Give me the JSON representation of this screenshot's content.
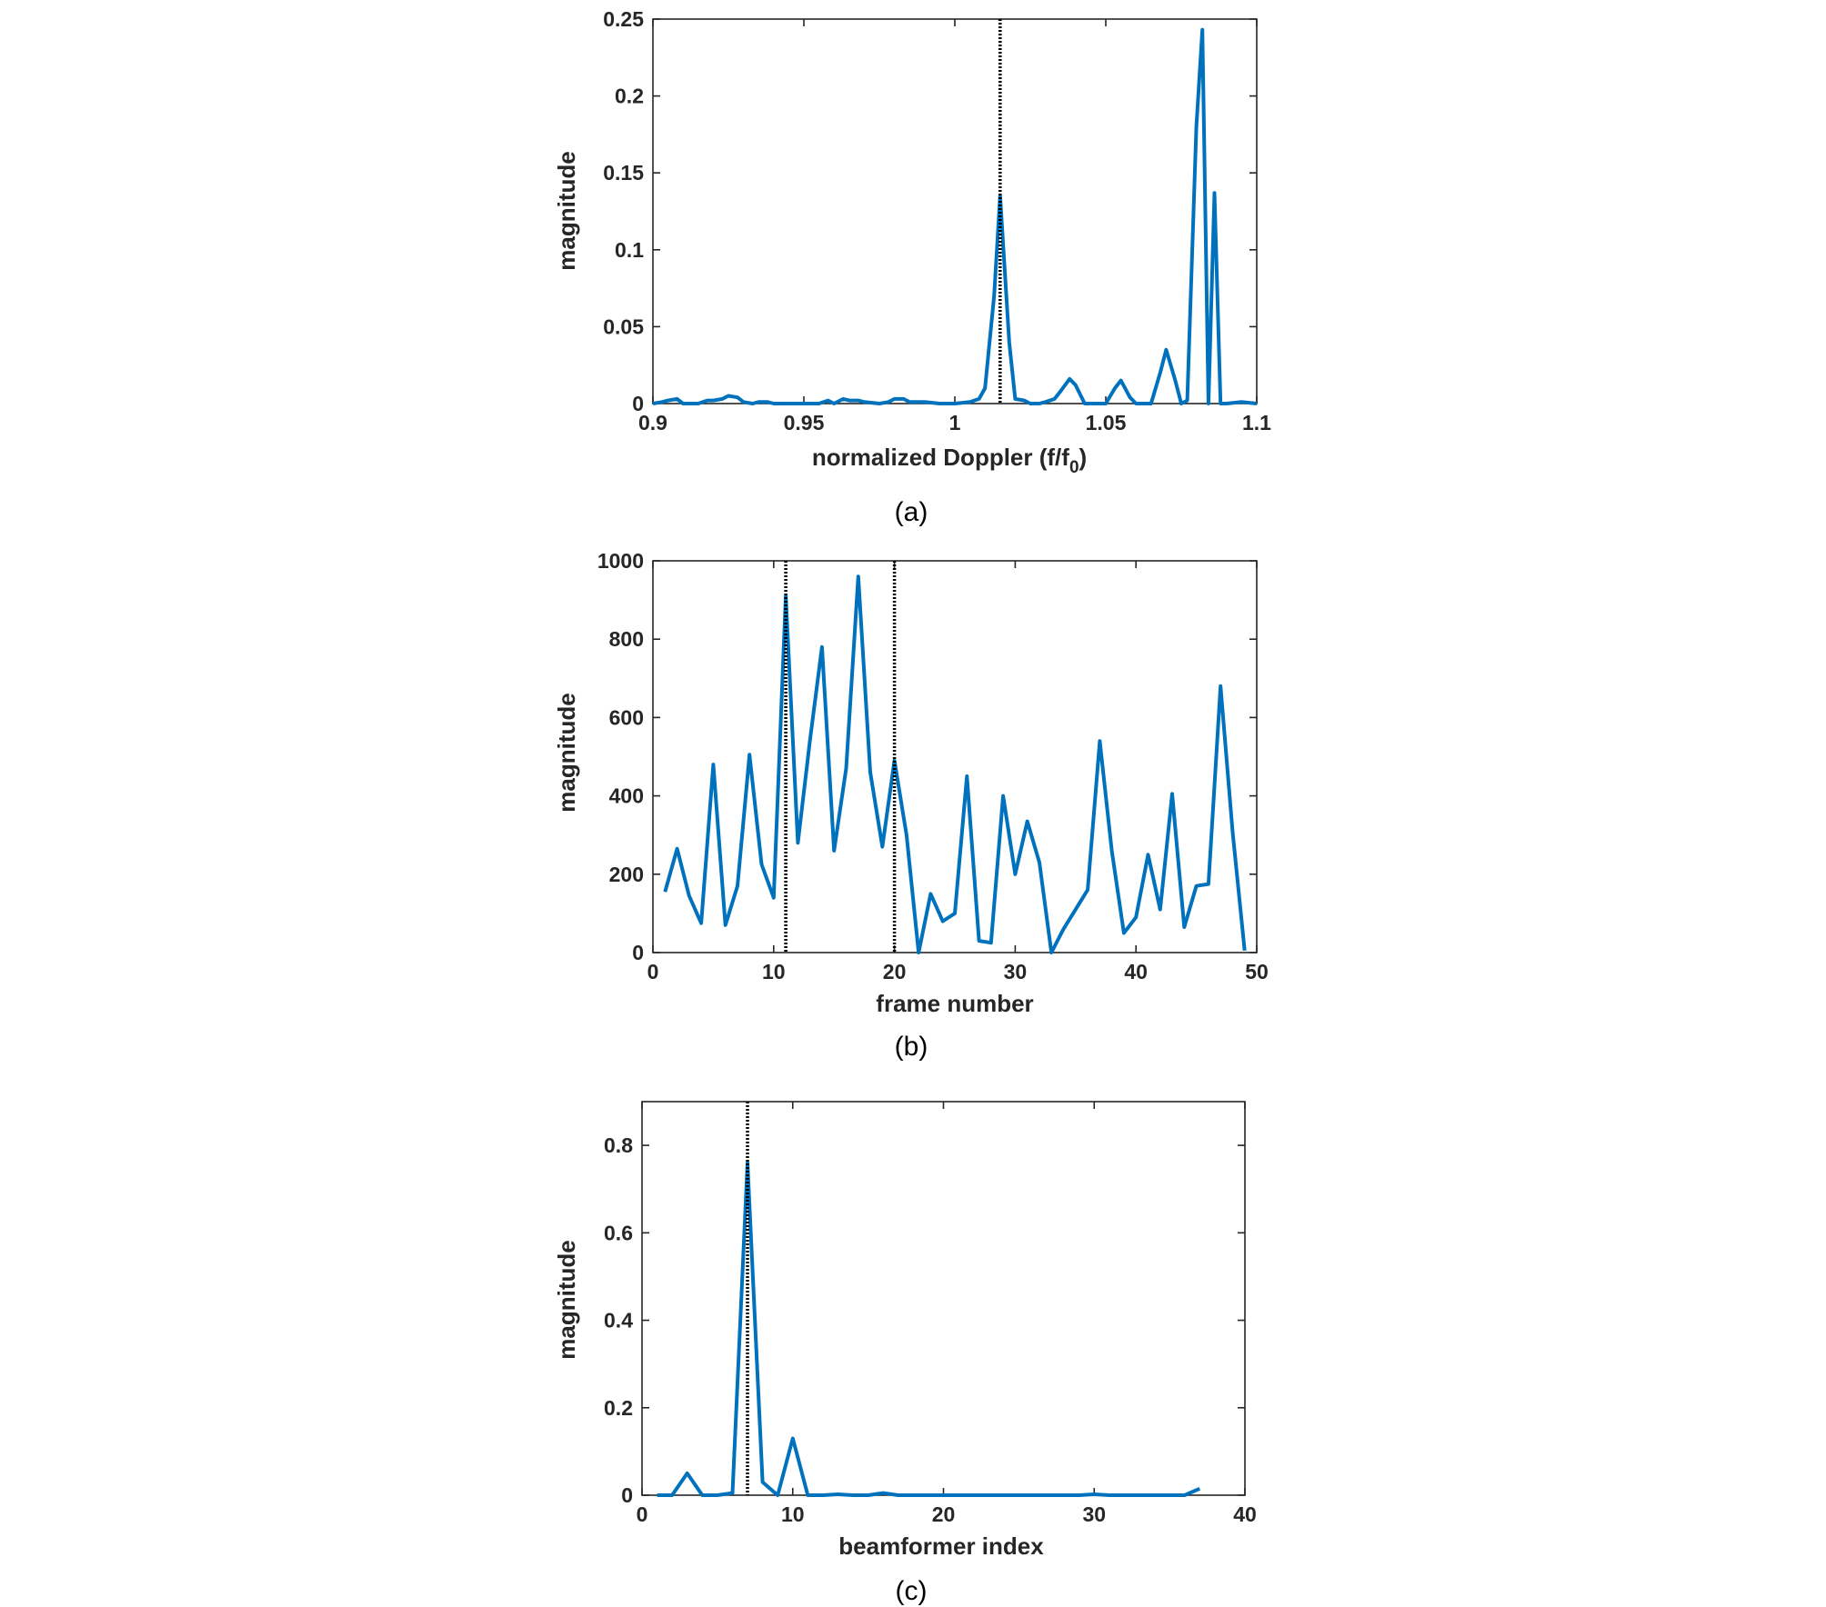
{
  "colors": {
    "series": "#0072BD",
    "marker": "#000000",
    "axes": "#262626"
  },
  "chart_data": [
    {
      "type": "line",
      "caption": "(a)",
      "xlabel": "normalized Doppler (f/f",
      "xlabel_sub": "0",
      "xlabel_end": ")",
      "ylabel": "magnitude",
      "xlim": [
        0.9,
        1.1
      ],
      "ylim": [
        0,
        0.25
      ],
      "xticks": [
        0.9,
        0.95,
        1,
        1.05,
        1.1
      ],
      "xtick_labels": [
        "0.9",
        "0.95",
        "1",
        "1.05",
        "1.1"
      ],
      "yticks": [
        0,
        0.05,
        0.1,
        0.15,
        0.2,
        0.25
      ],
      "ytick_labels": [
        "0",
        "0.05",
        "0.1",
        "0.15",
        "0.2",
        "0.25"
      ],
      "markers": [
        1.015
      ],
      "x": [
        0.9,
        0.903,
        0.905,
        0.908,
        0.91,
        0.913,
        0.915,
        0.918,
        0.92,
        0.923,
        0.925,
        0.928,
        0.93,
        0.933,
        0.935,
        0.938,
        0.94,
        0.945,
        0.95,
        0.955,
        0.958,
        0.96,
        0.963,
        0.965,
        0.968,
        0.97,
        0.975,
        0.978,
        0.98,
        0.983,
        0.985,
        0.988,
        0.99,
        0.995,
        1.0,
        1.005,
        1.008,
        1.01,
        1.013,
        1.015,
        1.018,
        1.02,
        1.023,
        1.025,
        1.028,
        1.03,
        1.033,
        1.035,
        1.038,
        1.04,
        1.043,
        1.045,
        1.048,
        1.05,
        1.053,
        1.055,
        1.058,
        1.06,
        1.063,
        1.065,
        1.068,
        1.07,
        1.073,
        1.075,
        1.077,
        1.08,
        1.082,
        1.084,
        1.086,
        1.088,
        1.09,
        1.095,
        1.1
      ],
      "y": [
        0.0,
        0.001,
        0.002,
        0.003,
        0.0,
        0.0,
        0.0,
        0.002,
        0.002,
        0.003,
        0.005,
        0.004,
        0.001,
        0.0,
        0.001,
        0.001,
        0.0,
        0.0,
        0.0,
        0.0,
        0.002,
        0.0,
        0.003,
        0.002,
        0.002,
        0.001,
        0.0,
        0.001,
        0.003,
        0.003,
        0.001,
        0.001,
        0.001,
        0.0,
        0.0,
        0.001,
        0.003,
        0.01,
        0.07,
        0.135,
        0.04,
        0.003,
        0.002,
        0.0,
        0.0,
        0.001,
        0.003,
        0.008,
        0.016,
        0.012,
        0.0,
        0.0,
        0.0,
        0.0,
        0.01,
        0.015,
        0.004,
        0.0,
        0.0,
        0.0,
        0.02,
        0.035,
        0.015,
        0.0,
        0.002,
        0.18,
        0.243,
        0.0,
        0.137,
        0.0,
        0.0,
        0.001,
        0.0
      ]
    },
    {
      "type": "line",
      "caption": "(b)",
      "xlabel": "frame number",
      "ylabel": "magnitude",
      "xlim": [
        0,
        50
      ],
      "ylim": [
        0,
        1000
      ],
      "xticks": [
        0,
        10,
        20,
        30,
        40,
        50
      ],
      "xtick_labels": [
        "0",
        "10",
        "20",
        "30",
        "40",
        "50"
      ],
      "yticks": [
        0,
        200,
        400,
        600,
        800,
        1000
      ],
      "ytick_labels": [
        "0",
        "200",
        "400",
        "600",
        "800",
        "1000"
      ],
      "markers": [
        11,
        20
      ],
      "x": [
        1,
        2,
        3,
        4,
        5,
        6,
        7,
        8,
        9,
        10,
        11,
        12,
        13,
        14,
        15,
        16,
        17,
        18,
        19,
        20,
        21,
        22,
        23,
        24,
        25,
        26,
        27,
        28,
        29,
        30,
        31,
        32,
        33,
        34,
        35,
        36,
        37,
        38,
        39,
        40,
        41,
        42,
        43,
        44,
        45,
        46,
        47,
        48,
        49
      ],
      "y": [
        155,
        265,
        145,
        75,
        480,
        70,
        170,
        505,
        225,
        140,
        910,
        280,
        540,
        780,
        260,
        470,
        960,
        460,
        270,
        490,
        300,
        0,
        150,
        80,
        100,
        450,
        30,
        25,
        400,
        200,
        335,
        230,
        0,
        60,
        110,
        160,
        540,
        260,
        50,
        90,
        250,
        110,
        405,
        65,
        170,
        175,
        680,
        310,
        5
      ]
    },
    {
      "type": "line",
      "caption": "(c)",
      "xlabel": "beamformer index",
      "ylabel": "magnitude",
      "xlim": [
        0,
        40
      ],
      "ylim": [
        0,
        0.9
      ],
      "xticks": [
        0,
        10,
        20,
        30,
        40
      ],
      "xtick_labels": [
        "0",
        "10",
        "20",
        "30",
        "40"
      ],
      "yticks": [
        0,
        0.2,
        0.4,
        0.6,
        0.8
      ],
      "ytick_labels": [
        "0",
        "0.2",
        "0.4",
        "0.6",
        "0.8"
      ],
      "markers": [
        7
      ],
      "x": [
        1,
        2,
        3,
        4,
        5,
        6,
        7,
        8,
        9,
        10,
        11,
        12,
        13,
        14,
        15,
        16,
        17,
        18,
        19,
        20,
        21,
        22,
        23,
        24,
        25,
        26,
        27,
        28,
        29,
        30,
        31,
        32,
        33,
        34,
        35,
        36,
        37
      ],
      "y": [
        0.0,
        0.0,
        0.05,
        0.0,
        0.0,
        0.005,
        0.76,
        0.03,
        0.0,
        0.13,
        0.0,
        0.0,
        0.002,
        0.0,
        0.0,
        0.005,
        0.0,
        0.0,
        0.0,
        0.0,
        0.0,
        0.0,
        0.0,
        0.0,
        0.0,
        0.0,
        0.0,
        0.0,
        0.0,
        0.002,
        0.0,
        0.0,
        0.0,
        0.0,
        0.0,
        0.0,
        0.015
      ]
    }
  ]
}
